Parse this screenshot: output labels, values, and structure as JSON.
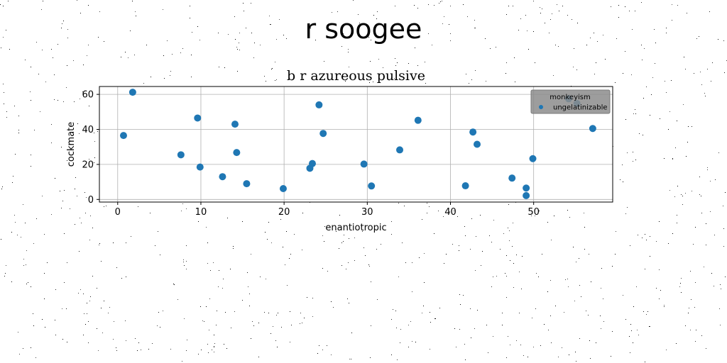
{
  "suptitle": "r soogee",
  "chart_data": {
    "type": "scatter",
    "title": "b r azureous pulsive",
    "xlabel": "enantiotropic",
    "ylabel": "cockmate",
    "xlim": [
      -2.2,
      59.5
    ],
    "ylim": [
      -1.5,
      64.5
    ],
    "xticks": [
      0,
      10,
      20,
      30,
      40,
      50
    ],
    "yticks": [
      0,
      20,
      40,
      60
    ],
    "grid": true,
    "legend": {
      "title": "monkeyism",
      "placement": "top-right"
    },
    "series": [
      {
        "name": "ungelatinizable",
        "color": "#1f77b4",
        "points": [
          [
            0.7,
            36.5
          ],
          [
            1.8,
            61.2
          ],
          [
            7.6,
            25.5
          ],
          [
            9.6,
            46.5
          ],
          [
            9.9,
            18.5
          ],
          [
            12.6,
            13
          ],
          [
            14.1,
            43
          ],
          [
            14.3,
            26.8
          ],
          [
            15.5,
            9
          ],
          [
            19.9,
            6.2
          ],
          [
            23.1,
            17.8
          ],
          [
            23.4,
            20.5
          ],
          [
            24.2,
            54
          ],
          [
            24.7,
            37.7
          ],
          [
            29.6,
            20.2
          ],
          [
            30.5,
            7.7
          ],
          [
            33.9,
            28.3
          ],
          [
            36.1,
            45.2
          ],
          [
            41.8,
            7.8
          ],
          [
            42.7,
            38.5
          ],
          [
            43.2,
            31.5
          ],
          [
            47.4,
            12.2
          ],
          [
            49.1,
            6.5
          ],
          [
            49.1,
            2.2
          ],
          [
            49.9,
            23.3
          ],
          [
            54.2,
            57.5
          ],
          [
            55.2,
            54.8
          ],
          [
            57.1,
            40.5
          ]
        ]
      }
    ]
  }
}
